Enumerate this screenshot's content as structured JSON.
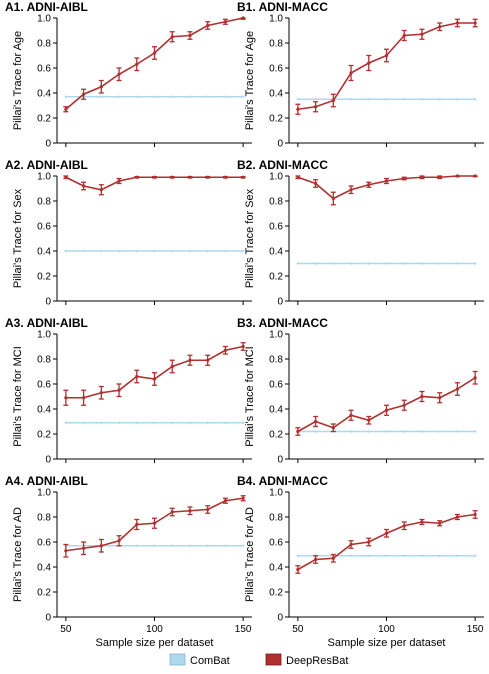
{
  "figure": {
    "x_label": "Sample size per dataset",
    "legend": [
      {
        "name": "ComBat",
        "color": "#aed8ee"
      },
      {
        "name": "DeepResBat",
        "color": "#b03030"
      }
    ]
  },
  "chart_data": [
    {
      "type": "line",
      "title": "A1. ADNI-AIBL",
      "ylabel": "Pillai's Trace for Age",
      "x": [
        50,
        60,
        70,
        80,
        90,
        100,
        110,
        120,
        130,
        140,
        150
      ],
      "xlim": [
        45,
        155
      ],
      "ylim": [
        0,
        1
      ],
      "yticks": [
        "0",
        "0.2",
        "0.4",
        "0.6",
        "0.8",
        "1.0"
      ],
      "show_xticks": false,
      "series": [
        {
          "name": "ComBat",
          "values": [
            0.37,
            0.37,
            0.37,
            0.37,
            0.37,
            0.37,
            0.37,
            0.37,
            0.37,
            0.37,
            0.37
          ]
        },
        {
          "name": "DeepResBat",
          "values": [
            0.27,
            0.39,
            0.45,
            0.55,
            0.63,
            0.72,
            0.85,
            0.86,
            0.94,
            0.97,
            1.0
          ],
          "err": [
            0.02,
            0.04,
            0.05,
            0.05,
            0.05,
            0.05,
            0.04,
            0.03,
            0.03,
            0.02,
            0.01
          ]
        }
      ]
    },
    {
      "type": "line",
      "title": "B1. ADNI-MACC",
      "ylabel": "Pillai's Trace for Age",
      "x": [
        50,
        60,
        70,
        80,
        90,
        100,
        110,
        120,
        130,
        140,
        150
      ],
      "xlim": [
        45,
        155
      ],
      "ylim": [
        0,
        1
      ],
      "yticks": [
        "0",
        "0.2",
        "0.4",
        "0.6",
        "0.8",
        "1.0"
      ],
      "show_xticks": false,
      "series": [
        {
          "name": "ComBat",
          "values": [
            0.35,
            0.35,
            0.35,
            0.35,
            0.35,
            0.35,
            0.35,
            0.35,
            0.35,
            0.35,
            0.35
          ]
        },
        {
          "name": "DeepResBat",
          "values": [
            0.27,
            0.29,
            0.34,
            0.56,
            0.64,
            0.7,
            0.86,
            0.87,
            0.93,
            0.96,
            0.96
          ],
          "err": [
            0.04,
            0.04,
            0.05,
            0.06,
            0.06,
            0.05,
            0.04,
            0.04,
            0.03,
            0.03,
            0.03
          ]
        }
      ]
    },
    {
      "type": "line",
      "title": "A2. ADNI-AIBL",
      "ylabel": "Pillai's Trace for Sex",
      "x": [
        50,
        60,
        70,
        80,
        90,
        100,
        110,
        120,
        130,
        140,
        150
      ],
      "xlim": [
        45,
        155
      ],
      "ylim": [
        0,
        1
      ],
      "yticks": [
        "0",
        "0.2",
        "0.4",
        "0.6",
        "0.8",
        "1.0"
      ],
      "show_xticks": false,
      "series": [
        {
          "name": "ComBat",
          "values": [
            0.4,
            0.4,
            0.4,
            0.4,
            0.4,
            0.4,
            0.4,
            0.4,
            0.4,
            0.4,
            0.4
          ]
        },
        {
          "name": "DeepResBat",
          "values": [
            0.99,
            0.92,
            0.89,
            0.96,
            0.99,
            0.99,
            0.99,
            0.99,
            0.99,
            0.99,
            0.99
          ],
          "err": [
            0.01,
            0.03,
            0.04,
            0.02,
            0.005,
            0.005,
            0.005,
            0.005,
            0.005,
            0.005,
            0.005
          ]
        }
      ]
    },
    {
      "type": "line",
      "title": "B2. ADNI-MACC",
      "ylabel": "Pillai's Trace for Sex",
      "x": [
        50,
        60,
        70,
        80,
        90,
        100,
        110,
        120,
        130,
        140,
        150
      ],
      "xlim": [
        45,
        155
      ],
      "ylim": [
        0,
        1
      ],
      "yticks": [
        "0",
        "0.2",
        "0.4",
        "0.6",
        "0.8",
        "1.0"
      ],
      "show_xticks": false,
      "series": [
        {
          "name": "ComBat",
          "values": [
            0.3,
            0.3,
            0.3,
            0.3,
            0.3,
            0.3,
            0.3,
            0.3,
            0.3,
            0.3,
            0.3
          ]
        },
        {
          "name": "DeepResBat",
          "values": [
            0.99,
            0.94,
            0.82,
            0.89,
            0.93,
            0.96,
            0.98,
            0.99,
            0.99,
            1.0,
            1.0
          ],
          "err": [
            0.01,
            0.03,
            0.05,
            0.03,
            0.02,
            0.02,
            0.01,
            0.01,
            0.01,
            0.005,
            0.005
          ]
        }
      ]
    },
    {
      "type": "line",
      "title": "A3. ADNI-AIBL",
      "ylabel": "Pillai's Trace for MCI",
      "x": [
        50,
        60,
        70,
        80,
        90,
        100,
        110,
        120,
        130,
        140,
        150
      ],
      "xlim": [
        45,
        155
      ],
      "ylim": [
        0,
        1
      ],
      "yticks": [
        "0",
        "0.2",
        "0.4",
        "0.6",
        "0.8",
        "1.0"
      ],
      "show_xticks": false,
      "series": [
        {
          "name": "ComBat",
          "values": [
            0.29,
            0.29,
            0.29,
            0.29,
            0.29,
            0.29,
            0.29,
            0.29,
            0.29,
            0.29,
            0.29
          ]
        },
        {
          "name": "DeepResBat",
          "values": [
            0.49,
            0.49,
            0.53,
            0.55,
            0.66,
            0.64,
            0.74,
            0.79,
            0.79,
            0.87,
            0.9
          ],
          "err": [
            0.06,
            0.06,
            0.05,
            0.05,
            0.05,
            0.05,
            0.05,
            0.04,
            0.04,
            0.03,
            0.03
          ]
        }
      ]
    },
    {
      "type": "line",
      "title": "B3. ADNI-MACC",
      "ylabel": "Pillai's Trace for MCI",
      "x": [
        50,
        60,
        70,
        80,
        90,
        100,
        110,
        120,
        130,
        140,
        150
      ],
      "xlim": [
        45,
        155
      ],
      "ylim": [
        0,
        1
      ],
      "yticks": [
        "0",
        "0.2",
        "0.4",
        "0.6",
        "0.8",
        "1.0"
      ],
      "show_xticks": false,
      "series": [
        {
          "name": "ComBat",
          "values": [
            0.22,
            0.22,
            0.22,
            0.22,
            0.22,
            0.22,
            0.22,
            0.22,
            0.22,
            0.22,
            0.22
          ]
        },
        {
          "name": "DeepResBat",
          "values": [
            0.22,
            0.3,
            0.25,
            0.35,
            0.31,
            0.39,
            0.43,
            0.5,
            0.49,
            0.56,
            0.65
          ],
          "err": [
            0.03,
            0.04,
            0.03,
            0.04,
            0.03,
            0.04,
            0.04,
            0.04,
            0.04,
            0.05,
            0.05
          ]
        }
      ]
    },
    {
      "type": "line",
      "title": "A4. ADNI-AIBL",
      "ylabel": "Pillai's Trace for AD",
      "x": [
        50,
        60,
        70,
        80,
        90,
        100,
        110,
        120,
        130,
        140,
        150
      ],
      "xlim": [
        45,
        155
      ],
      "ylim": [
        0,
        1
      ],
      "yticks": [
        "0",
        "0.2",
        "0.4",
        "0.6",
        "0.8",
        "1.0"
      ],
      "show_xticks": true,
      "xticks": [
        "50",
        "100",
        "150"
      ],
      "series": [
        {
          "name": "ComBat",
          "values": [
            0.57,
            0.57,
            0.57,
            0.57,
            0.57,
            0.57,
            0.57,
            0.57,
            0.57,
            0.57,
            0.57
          ]
        },
        {
          "name": "DeepResBat",
          "values": [
            0.53,
            0.55,
            0.57,
            0.61,
            0.74,
            0.75,
            0.84,
            0.85,
            0.86,
            0.93,
            0.95
          ],
          "err": [
            0.05,
            0.05,
            0.05,
            0.04,
            0.04,
            0.04,
            0.03,
            0.03,
            0.03,
            0.02,
            0.02
          ]
        }
      ]
    },
    {
      "type": "line",
      "title": "B4. ADNI-MACC",
      "ylabel": "Pillai's Trace for AD",
      "x": [
        50,
        60,
        70,
        80,
        90,
        100,
        110,
        120,
        130,
        140,
        150
      ],
      "xlim": [
        45,
        155
      ],
      "ylim": [
        0,
        1
      ],
      "yticks": [
        "0",
        "0.2",
        "0.4",
        "0.6",
        "0.8",
        "1.0"
      ],
      "show_xticks": true,
      "xticks": [
        "50",
        "100",
        "150"
      ],
      "series": [
        {
          "name": "ComBat",
          "values": [
            0.49,
            0.49,
            0.49,
            0.49,
            0.49,
            0.49,
            0.49,
            0.49,
            0.49,
            0.49,
            0.49
          ]
        },
        {
          "name": "DeepResBat",
          "values": [
            0.38,
            0.46,
            0.47,
            0.58,
            0.6,
            0.67,
            0.73,
            0.76,
            0.75,
            0.8,
            0.82
          ],
          "err": [
            0.03,
            0.03,
            0.03,
            0.03,
            0.03,
            0.03,
            0.03,
            0.02,
            0.02,
            0.02,
            0.03
          ]
        }
      ]
    }
  ]
}
